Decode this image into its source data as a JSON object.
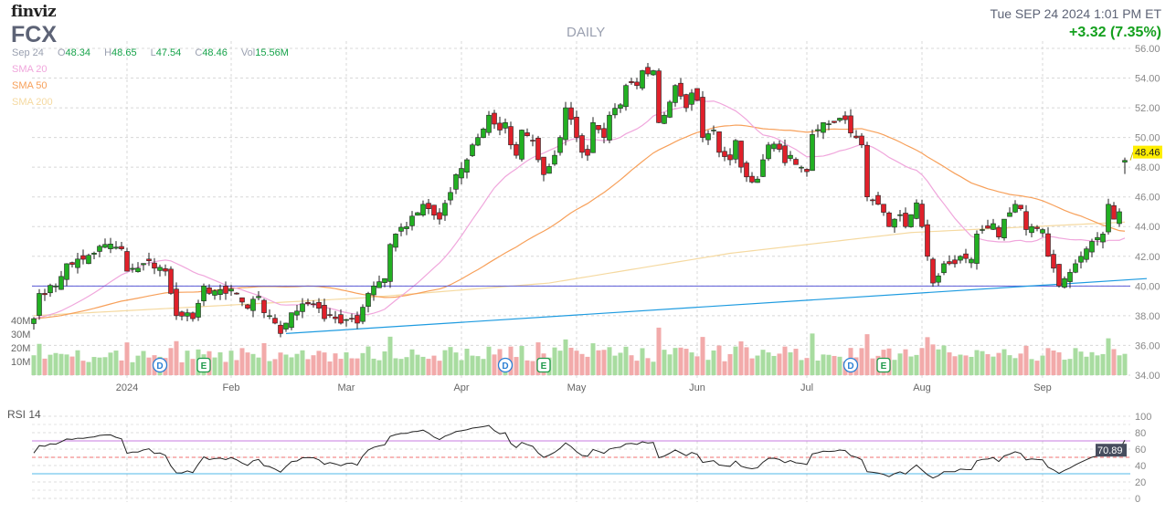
{
  "header": {
    "logo": "finviz",
    "ticker": "FCX",
    "timeframe": "DAILY",
    "datetime": "Tue SEP 24 2024 1:01 PM ET",
    "change": "+3.32 (7.35%)"
  },
  "ohlc": {
    "date": "Sep 24",
    "o_label": "O",
    "open": "48.34",
    "h_label": "H",
    "high": "48.65",
    "l_label": "L",
    "low": "47.54",
    "c_label": "C",
    "close": "48.46",
    "vol_label": "Vol",
    "volume": "15.56M"
  },
  "legend": {
    "sma20": "SMA 20",
    "sma50": "SMA 50",
    "sma200": "SMA 200"
  },
  "colors": {
    "up": "#22b022",
    "down": "#e0202a",
    "sma20": "#f0a6dc",
    "sma50": "#f7a05a",
    "sma200": "#f5d9a0",
    "vol_up": "#a8dca0",
    "vol_down": "#f2aaaa",
    "hline": "#5b5bd6",
    "trend": "#1e9be0"
  },
  "chart_data": {
    "type": "candlestick",
    "title": "FCX DAILY",
    "price_axis": {
      "ticks": [
        "56.00",
        "54.00",
        "52.00",
        "50.00",
        "48.00",
        "46.00",
        "44.00",
        "42.00",
        "40.00",
        "38.00",
        "36.00",
        "34.00"
      ],
      "range": [
        34,
        56
      ]
    },
    "last_price_label": "48.46",
    "x_labels": [
      "2024",
      "Feb",
      "Mar",
      "Apr",
      "May",
      "Jun",
      "Jul",
      "Aug",
      "Sep"
    ],
    "x_label_days": [
      17,
      36,
      57,
      78,
      99,
      121,
      141,
      162,
      184
    ],
    "num_days": 200,
    "close_anchors": [
      [
        0,
        37.8
      ],
      [
        1,
        39.5
      ],
      [
        4,
        40
      ],
      [
        6,
        41.5
      ],
      [
        9,
        41.8
      ],
      [
        13,
        42.8
      ],
      [
        16,
        42.5
      ],
      [
        17,
        41
      ],
      [
        19,
        41.2
      ],
      [
        21,
        41.7
      ],
      [
        22,
        41.2
      ],
      [
        24,
        41
      ],
      [
        25,
        39.5
      ],
      [
        26,
        38
      ],
      [
        28,
        38.2
      ],
      [
        29,
        37.8
      ],
      [
        31,
        40
      ],
      [
        32,
        39.5
      ],
      [
        36,
        39.8
      ],
      [
        39,
        38.5
      ],
      [
        41,
        39.3
      ],
      [
        42,
        38.2
      ],
      [
        44,
        37.5
      ],
      [
        45,
        36.8
      ],
      [
        46,
        37.5
      ],
      [
        47,
        38.2
      ],
      [
        49,
        38.8
      ],
      [
        51,
        38.8
      ],
      [
        52,
        38.5
      ],
      [
        53,
        37.8
      ],
      [
        55,
        37.8
      ],
      [
        56,
        37.5
      ],
      [
        58,
        37.8
      ],
      [
        59,
        37.5
      ],
      [
        61,
        39.5
      ],
      [
        62,
        40
      ],
      [
        64,
        40.5
      ],
      [
        65,
        42.8
      ],
      [
        66,
        43.5
      ],
      [
        68,
        44
      ],
      [
        71,
        45.5
      ],
      [
        72,
        45.2
      ],
      [
        74,
        44.5
      ],
      [
        76,
        46.3
      ],
      [
        77,
        47.5
      ],
      [
        79,
        48.5
      ],
      [
        80,
        49.5
      ],
      [
        81,
        50
      ],
      [
        83,
        51.5
      ],
      [
        85,
        50.5
      ],
      [
        86,
        51
      ],
      [
        87,
        49.5
      ],
      [
        88,
        48.8
      ],
      [
        89,
        50.5
      ],
      [
        91,
        49.8
      ],
      [
        92,
        48.5
      ],
      [
        93,
        47.5
      ],
      [
        95,
        48.8
      ],
      [
        96,
        50
      ],
      [
        97,
        52
      ],
      [
        99,
        50
      ],
      [
        100,
        49
      ],
      [
        101,
        48.8
      ],
      [
        102,
        51
      ],
      [
        104,
        50
      ],
      [
        105,
        51.5
      ],
      [
        107,
        52.2
      ],
      [
        108,
        53.5
      ],
      [
        110,
        53.5
      ],
      [
        111,
        54.5
      ],
      [
        113,
        54.5
      ],
      [
        114,
        51
      ],
      [
        115,
        51.5
      ],
      [
        117,
        53.5
      ],
      [
        119,
        52
      ],
      [
        120,
        53
      ],
      [
        121,
        52.5
      ],
      [
        122,
        50
      ],
      [
        124,
        50.5
      ],
      [
        125,
        49
      ],
      [
        127,
        48.5
      ],
      [
        128,
        49.8
      ],
      [
        129,
        48
      ],
      [
        131,
        47
      ],
      [
        132,
        47.2
      ],
      [
        133,
        48.5
      ],
      [
        134,
        49.5
      ],
      [
        136,
        49.2
      ],
      [
        137,
        48.3
      ],
      [
        138,
        48.8
      ],
      [
        140,
        48
      ],
      [
        141,
        47.7
      ],
      [
        142,
        50.2
      ],
      [
        144,
        51
      ],
      [
        146,
        51
      ],
      [
        147,
        51.3
      ],
      [
        148,
        51.2
      ],
      [
        149,
        50.3
      ],
      [
        151,
        49.5
      ],
      [
        152,
        46
      ],
      [
        153,
        45.8
      ],
      [
        154,
        45.5
      ],
      [
        156,
        44
      ],
      [
        157,
        44.5
      ],
      [
        158,
        44.8
      ],
      [
        159,
        44
      ],
      [
        161,
        45.6
      ],
      [
        162,
        44
      ],
      [
        163,
        42
      ],
      [
        164,
        40.2
      ],
      [
        166,
        41.5
      ],
      [
        167,
        41.5
      ],
      [
        168,
        41.5
      ],
      [
        169,
        42
      ],
      [
        171,
        41.8
      ],
      [
        172,
        43.5
      ],
      [
        173,
        43.8
      ],
      [
        175,
        44.2
      ],
      [
        176,
        43.3
      ],
      [
        177,
        44.5
      ],
      [
        179,
        45.5
      ],
      [
        180,
        45.2
      ],
      [
        181,
        43.8
      ],
      [
        182,
        44
      ],
      [
        184,
        43.8
      ],
      [
        185,
        42
      ],
      [
        186,
        41.2
      ],
      [
        187,
        40
      ],
      [
        188,
        40.5
      ],
      [
        190,
        41.5
      ],
      [
        191,
        42
      ],
      [
        192,
        42.5
      ],
      [
        193,
        43
      ],
      [
        195,
        43.5
      ],
      [
        196,
        45.5
      ],
      [
        197,
        44.5
      ],
      [
        198,
        45
      ],
      [
        199,
        48.46
      ]
    ],
    "sma200_anchors": [
      [
        0,
        38
      ],
      [
        60,
        39.2
      ],
      [
        94,
        40.2
      ],
      [
        127,
        42.2
      ],
      [
        160,
        43.6
      ],
      [
        199,
        44.3
      ]
    ],
    "horizontal_line": 40,
    "trendline": [
      [
        46,
        36.8
      ],
      [
        203,
        40.5
      ]
    ],
    "events": [
      {
        "type": "D",
        "day": 23
      },
      {
        "type": "E",
        "day": 31
      },
      {
        "type": "D",
        "day": 86
      },
      {
        "type": "E",
        "day": 93
      },
      {
        "type": "D",
        "day": 149
      },
      {
        "type": "E",
        "day": 155
      }
    ],
    "volume_axis": {
      "ticks": [
        "40M",
        "30M",
        "20M",
        "10M"
      ]
    },
    "rsi": {
      "label": "RSI 14",
      "ticks": [
        "100",
        "80",
        "60",
        "40",
        "20",
        "0"
      ],
      "overbought": 70,
      "oversold": 30,
      "mid": 50,
      "last_label": "70.89"
    }
  }
}
